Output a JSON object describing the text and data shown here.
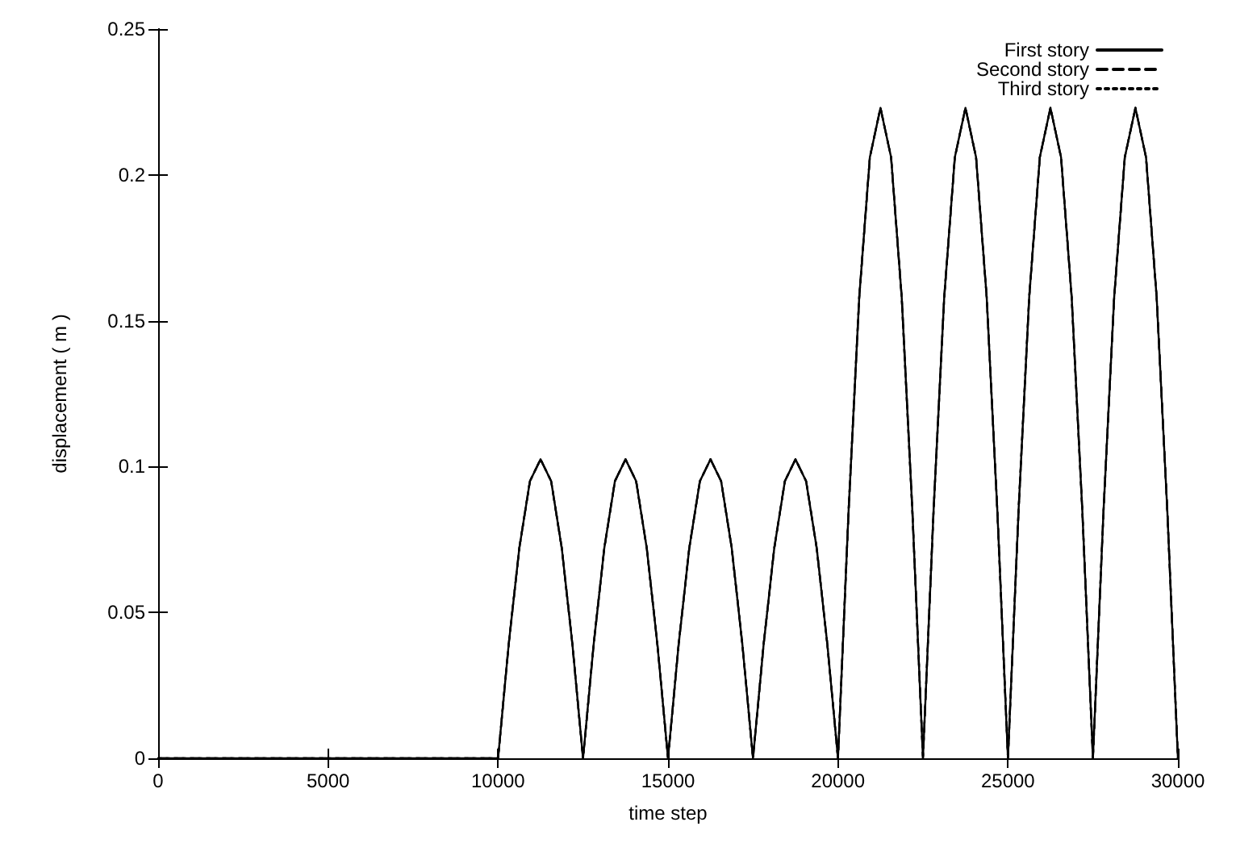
{
  "chart_data": {
    "type": "line",
    "xlabel": "time step",
    "ylabel": "displacement ( m )",
    "x": [
      0,
      10000,
      10312.5,
      10625,
      10937.5,
      11250,
      11562.5,
      11875,
      12187.5,
      12500,
      12812.5,
      13125,
      13437.5,
      13750,
      14062.5,
      14375,
      14687.5,
      15000,
      15312.5,
      15625,
      15937.5,
      16250,
      16562.5,
      16875,
      17187.5,
      17500,
      17812.5,
      18125,
      18437.5,
      18750,
      19062.5,
      19375,
      19687.5,
      20000,
      20312.5,
      20625,
      20937.5,
      21250,
      21562.5,
      21875,
      22187.5,
      22500,
      22812.5,
      23125,
      23437.5,
      23750,
      24062.5,
      24375,
      24687.5,
      25000,
      25312.5,
      25625,
      25937.5,
      26250,
      26562.5,
      26875,
      27187.5,
      27500,
      27812.5,
      28125,
      28437.5,
      28750,
      29062.5,
      29375,
      29687.5,
      30000
    ],
    "series": [
      {
        "name": "First story",
        "color": "#000000",
        "line_style": "solid",
        "values": [
          0,
          0,
          0.039,
          0.072,
          0.095,
          0.1025,
          0.095,
          0.072,
          0.039,
          0,
          0.039,
          0.072,
          0.095,
          0.1025,
          0.095,
          0.072,
          0.039,
          0,
          0.039,
          0.072,
          0.095,
          0.1025,
          0.095,
          0.072,
          0.039,
          0,
          0.039,
          0.072,
          0.095,
          0.1025,
          0.095,
          0.072,
          0.039,
          0,
          0.085,
          0.158,
          0.206,
          0.223,
          0.206,
          0.158,
          0.085,
          0,
          0.085,
          0.158,
          0.206,
          0.223,
          0.206,
          0.158,
          0.085,
          0,
          0.085,
          0.158,
          0.206,
          0.223,
          0.206,
          0.158,
          0.085,
          0,
          0.085,
          0.158,
          0.206,
          0.223,
          0.206,
          0.158,
          0.085,
          0
        ]
      },
      {
        "name": "Second story",
        "color": "#000000",
        "line_style": "dashed",
        "values": [
          0,
          0,
          0.039,
          0.072,
          0.095,
          0.1025,
          0.095,
          0.072,
          0.039,
          0,
          0.039,
          0.072,
          0.095,
          0.1025,
          0.095,
          0.072,
          0.039,
          0,
          0.039,
          0.072,
          0.095,
          0.1025,
          0.095,
          0.072,
          0.039,
          0,
          0.039,
          0.072,
          0.095,
          0.1025,
          0.095,
          0.072,
          0.039,
          0,
          0.085,
          0.158,
          0.206,
          0.223,
          0.206,
          0.158,
          0.085,
          0,
          0.085,
          0.158,
          0.206,
          0.223,
          0.206,
          0.158,
          0.085,
          0,
          0.085,
          0.158,
          0.206,
          0.223,
          0.206,
          0.158,
          0.085,
          0,
          0.085,
          0.158,
          0.206,
          0.223,
          0.206,
          0.158,
          0.085,
          0
        ]
      },
      {
        "name": "Third story",
        "color": "#000000",
        "line_style": "dotted",
        "values": [
          0,
          0,
          0.039,
          0.072,
          0.095,
          0.1025,
          0.095,
          0.072,
          0.039,
          0,
          0.039,
          0.072,
          0.095,
          0.1025,
          0.095,
          0.072,
          0.039,
          0,
          0.039,
          0.072,
          0.095,
          0.1025,
          0.095,
          0.072,
          0.039,
          0,
          0.039,
          0.072,
          0.095,
          0.1025,
          0.095,
          0.072,
          0.039,
          0,
          0.085,
          0.158,
          0.206,
          0.223,
          0.206,
          0.158,
          0.085,
          0,
          0.085,
          0.158,
          0.206,
          0.223,
          0.206,
          0.158,
          0.085,
          0,
          0.085,
          0.158,
          0.206,
          0.223,
          0.206,
          0.158,
          0.085,
          0,
          0.085,
          0.158,
          0.206,
          0.223,
          0.206,
          0.158,
          0.085,
          0
        ]
      }
    ],
    "xlim": [
      0,
      30000
    ],
    "xticks": [
      0,
      5000,
      10000,
      15000,
      20000,
      25000,
      30000
    ],
    "ylim": [
      0,
      0.25
    ],
    "yticks": [
      0,
      0.05,
      0.1,
      0.15,
      0.2,
      0.25
    ],
    "grid": false,
    "legend": "top right",
    "marker": "none"
  }
}
